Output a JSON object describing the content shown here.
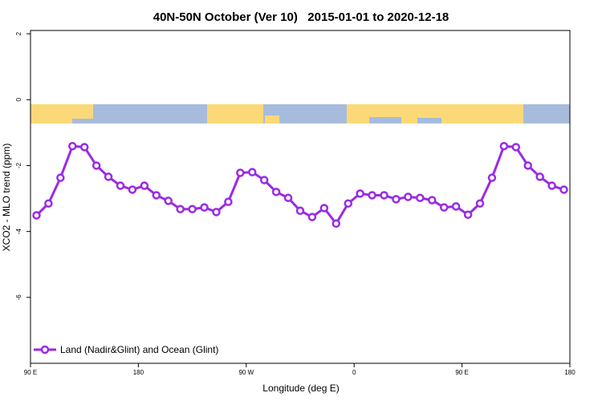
{
  "chart_data": {
    "type": "line",
    "title": "40N-50N October (Ver 10)   2015-01-01 to 2020-12-18",
    "x_label": "Longitude (deg E)",
    "y_label": "XCO2 - MLO trend (ppm)",
    "x": [
      95,
      105,
      115,
      125,
      135,
      145,
      155,
      165,
      175,
      185,
      195,
      205,
      215,
      225,
      235,
      245,
      255,
      265,
      275,
      285,
      295,
      305,
      315,
      325,
      335,
      345,
      355,
      365,
      375,
      385,
      395,
      405,
      415,
      425,
      435,
      445,
      455,
      465,
      475,
      485,
      495,
      505,
      515,
      525,
      535
    ],
    "series": [
      {
        "name": "Land (Nadir&Glint) and Ocean (Glint)",
        "color": "#9a2be2",
        "values": [
          -3.51,
          -3.15,
          -2.37,
          -1.41,
          -1.44,
          -2.0,
          -2.34,
          -2.61,
          -2.73,
          -2.61,
          -2.9,
          -3.07,
          -3.32,
          -3.32,
          -3.27,
          -3.41,
          -3.1,
          -2.22,
          -2.2,
          -2.44,
          -2.8,
          -2.98,
          -3.37,
          -3.56,
          -3.29,
          -3.76,
          -3.15,
          -2.85,
          -2.9,
          -2.9,
          -3.02,
          -2.95,
          -2.98,
          -3.05,
          -3.27,
          -3.24,
          -3.49,
          -3.15,
          -2.37,
          -1.41,
          -1.44,
          -2.0,
          -2.34,
          -2.61,
          -2.73
        ]
      }
    ],
    "xlim": [
      90,
      540
    ],
    "ylim": [
      -8,
      2.1
    ],
    "xticks": [
      {
        "value": 90,
        "label": "90 E"
      },
      {
        "value": 180,
        "label": "180"
      },
      {
        "value": 270,
        "label": "90 W"
      },
      {
        "value": 360,
        "label": "0"
      },
      {
        "value": 450,
        "label": "90 E"
      },
      {
        "value": 540,
        "label": "180"
      }
    ],
    "yticks": [
      -6,
      -4,
      -2,
      0,
      2
    ],
    "legend": "bottom-left"
  }
}
